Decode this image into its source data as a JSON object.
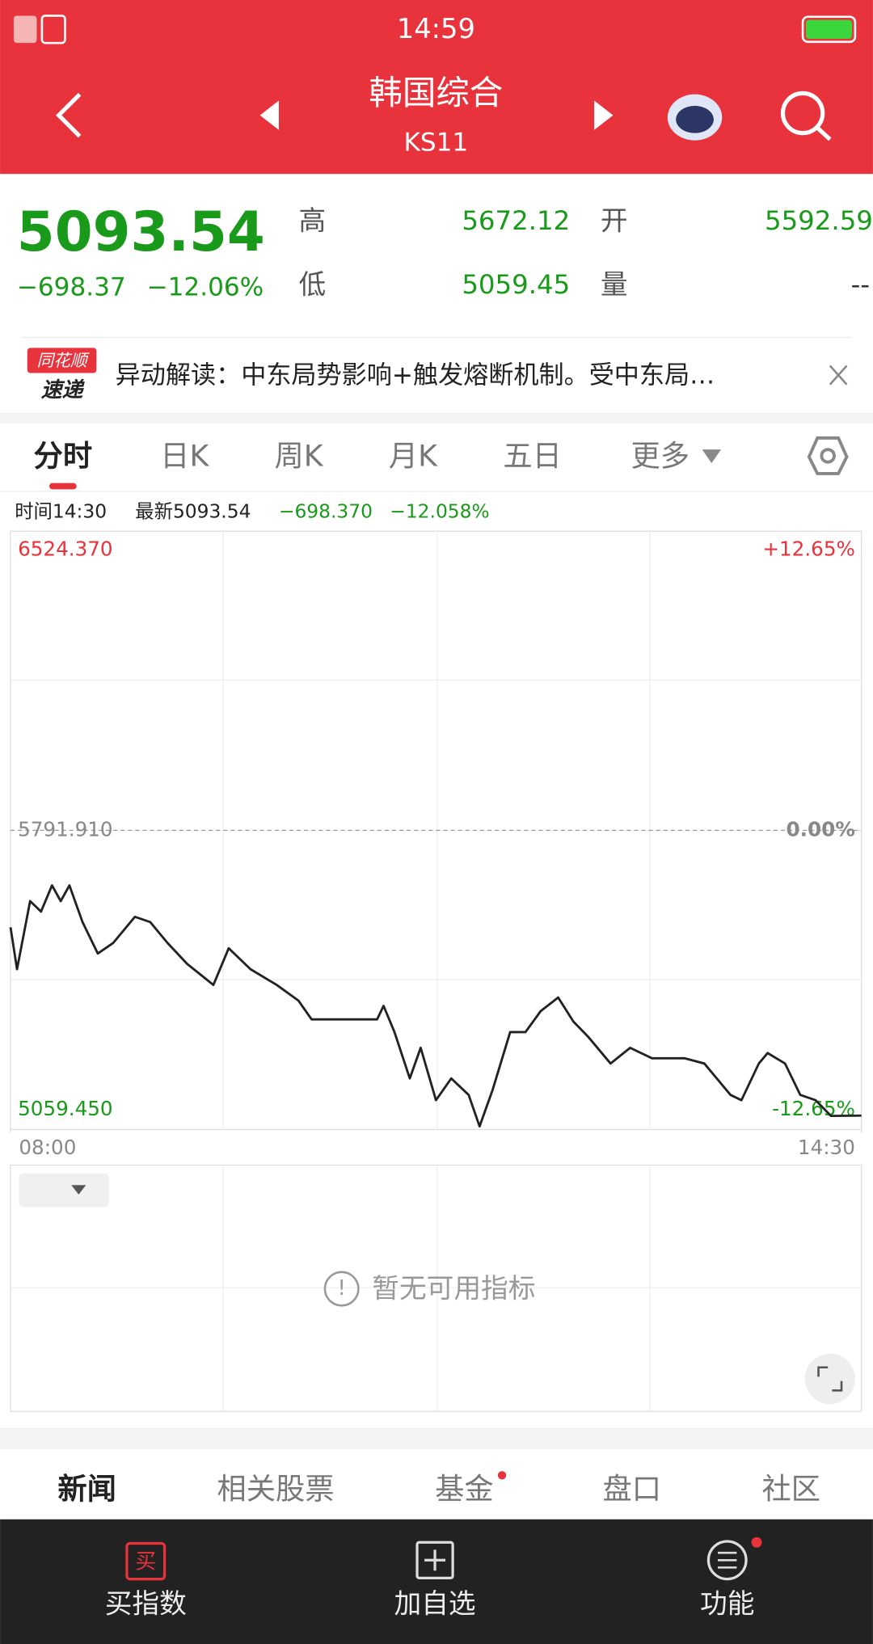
{
  "status_bar": {
    "time": "14:59"
  },
  "header": {
    "title": "韩国综合",
    "code": "KS11"
  },
  "quote": {
    "price": "5093.54",
    "change": "−698.37",
    "change_pct": "−12.06%",
    "high_label": "高",
    "high": "5672.12",
    "open_label": "开",
    "open": "5592.59",
    "low_label": "低",
    "low": "5059.45",
    "volume_label": "量",
    "volume": "--"
  },
  "news": {
    "badge_top": "同花顺",
    "badge_bottom": "速递",
    "text": "异动解读：中东局势影响+触发熔断机制。受中东局…"
  },
  "tabs": [
    "分时",
    "日K",
    "周K",
    "月K",
    "五日",
    "更多"
  ],
  "info_bar": {
    "time": "时间14:30",
    "latest": "最新5093.54",
    "change": "−698.370",
    "change_pct": "−12.058%"
  },
  "chart_data": {
    "type": "line",
    "color": "#222222",
    "grid": true,
    "x": [
      "08:00",
      "08:03",
      "08:09",
      "08:14",
      "08:19",
      "08:23",
      "08:27",
      "08:33",
      "08:40",
      "08:47",
      "08:57",
      "09:04",
      "09:12",
      "09:21",
      "09:33",
      "09:40",
      "09:50",
      "10:02",
      "10:12",
      "10:18",
      "10:48",
      "10:51",
      "10:56",
      "11:03",
      "11:08",
      "11:15",
      "11:22",
      "11:30",
      "11:35",
      "11:41",
      "11:49",
      "11:56",
      "12:03",
      "12:11",
      "12:18",
      "12:25",
      "12:35",
      "12:44",
      "12:54",
      "13:09",
      "13:18",
      "13:30",
      "13:35",
      "13:43",
      "13:47",
      "13:55",
      "14:02",
      "14:09",
      "14:16",
      "14:30"
    ],
    "values": [
      5554.6,
      5452.0,
      5618.7,
      5593.1,
      5657.2,
      5618.7,
      5657.2,
      5567.4,
      5490.5,
      5516.1,
      5580.3,
      5567.4,
      5516.1,
      5464.8,
      5413.5,
      5503.3,
      5452.0,
      5413.5,
      5375.0,
      5329.0,
      5329.0,
      5362.2,
      5298.0,
      5184.6,
      5259.6,
      5131.3,
      5184.6,
      5144.1,
      5067.2,
      5156.9,
      5298.0,
      5298.0,
      5349.3,
      5382.7,
      5323.7,
      5285.2,
      5221.1,
      5259.6,
      5233.9,
      5233.9,
      5221.1,
      5144.1,
      5131.3,
      5221.1,
      5246.8,
      5221.1,
      5144.1,
      5131.3,
      5092.8,
      5093.5
    ],
    "xlim": [
      "08:00",
      "14:30"
    ],
    "xticks": [
      "08:00",
      "14:30"
    ],
    "ylim": [
      5059.45,
      6524.37
    ],
    "yticks": [
      {
        "value": 6524.37,
        "label": "6524.370"
      },
      {
        "value": 5791.91,
        "label": "5791.910"
      },
      {
        "value": 5059.45,
        "label": "5059.450"
      }
    ],
    "y2lim": [
      -12.65,
      12.65
    ],
    "y2ticks": [
      {
        "value": 12.65,
        "label": "+12.65%"
      },
      {
        "value": 0,
        "label": "0.00%"
      },
      {
        "value": -12.65,
        "label": "-12.65%"
      }
    ]
  },
  "indicator": {
    "notice": "暂无可用指标"
  },
  "bottom_tabs": [
    "新闻",
    "相关股票",
    "基金",
    "盘口",
    "社区"
  ],
  "nav": {
    "buy_icon": "买",
    "items": [
      "买指数",
      "加自选",
      "功能"
    ]
  }
}
